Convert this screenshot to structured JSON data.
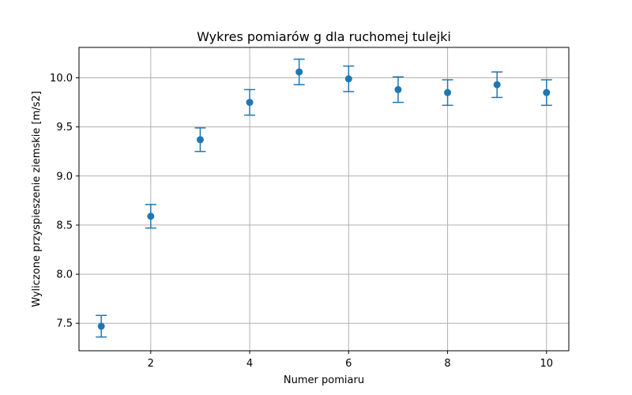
{
  "chart_data": {
    "type": "scatter",
    "title": "Wykres pomiarów g dla ruchomej tulejki",
    "xlabel": "Numer pomiaru",
    "ylabel": "Wyliczone przyspieszenie ziemskie [m/s2]",
    "xlim": [
      0.55,
      10.45
    ],
    "ylim": [
      7.22,
      10.31
    ],
    "xticks": [
      2,
      4,
      6,
      8,
      10
    ],
    "yticks": [
      7.5,
      8.0,
      8.5,
      9.0,
      9.5,
      10.0
    ],
    "xtick_labels": [
      "2",
      "4",
      "6",
      "8",
      "10"
    ],
    "ytick_labels": [
      "7.5",
      "8.0",
      "8.5",
      "9.0",
      "9.5",
      "10.0"
    ],
    "grid": true,
    "color": "#1f77b4",
    "points": [
      {
        "x": 1,
        "y": 7.47,
        "err": 0.11
      },
      {
        "x": 2,
        "y": 8.59,
        "err": 0.12
      },
      {
        "x": 3,
        "y": 9.37,
        "err": 0.12
      },
      {
        "x": 4,
        "y": 9.75,
        "err": 0.13
      },
      {
        "x": 5,
        "y": 10.06,
        "err": 0.13
      },
      {
        "x": 6,
        "y": 9.99,
        "err": 0.13
      },
      {
        "x": 7,
        "y": 9.88,
        "err": 0.13
      },
      {
        "x": 8,
        "y": 9.85,
        "err": 0.13
      },
      {
        "x": 9,
        "y": 9.93,
        "err": 0.13
      },
      {
        "x": 10,
        "y": 9.85,
        "err": 0.13
      }
    ]
  }
}
